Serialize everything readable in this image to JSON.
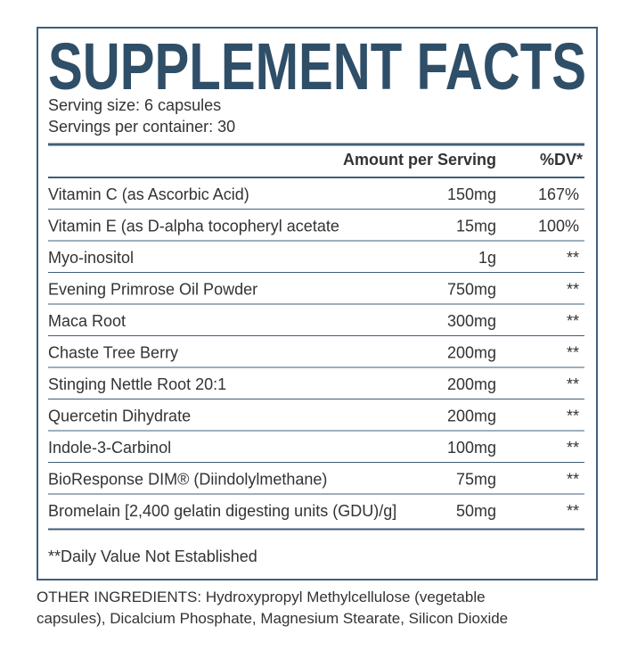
{
  "header": {
    "title": "SUPPLEMENT FACTS"
  },
  "serving": {
    "size": "Serving size: 6 capsules",
    "per_container": "Servings per container: 30"
  },
  "table": {
    "columns": [
      "Amount per Serving",
      "%DV*"
    ],
    "rows": [
      [
        "Vitamin C (as Ascorbic Acid)",
        "150mg",
        "167%"
      ],
      [
        "Vitamin E (as D-alpha tocopheryl acetate",
        "15mg",
        "100%"
      ],
      [
        "Myo-inositol",
        "1g",
        "**"
      ],
      [
        "Evening Primrose Oil Powder",
        "750mg",
        "**"
      ],
      [
        "Maca Root",
        "300mg",
        "**"
      ],
      [
        "Chaste Tree Berry",
        "200mg",
        "**"
      ],
      [
        "Stinging Nettle Root 20:1",
        "200mg",
        "**"
      ],
      [
        "Quercetin Dihydrate",
        "200mg",
        "**"
      ],
      [
        "Indole-3-Carbinol",
        "100mg",
        "**"
      ],
      [
        "BioResponse DIM® (Diindolylmethane)",
        "75mg",
        "**"
      ],
      [
        "Bromelain [2,400 gelatin digesting units (GDU)/g]",
        "50mg",
        "**"
      ]
    ]
  },
  "footnote": "**Daily Value Not Established",
  "other_ingredients": "OTHER INGREDIENTS: Hydroxypropyl Methylcellulose (vegetable capsules), Dicalcium Phosphate, Magnesium Stearate, Silicon Dioxide"
}
